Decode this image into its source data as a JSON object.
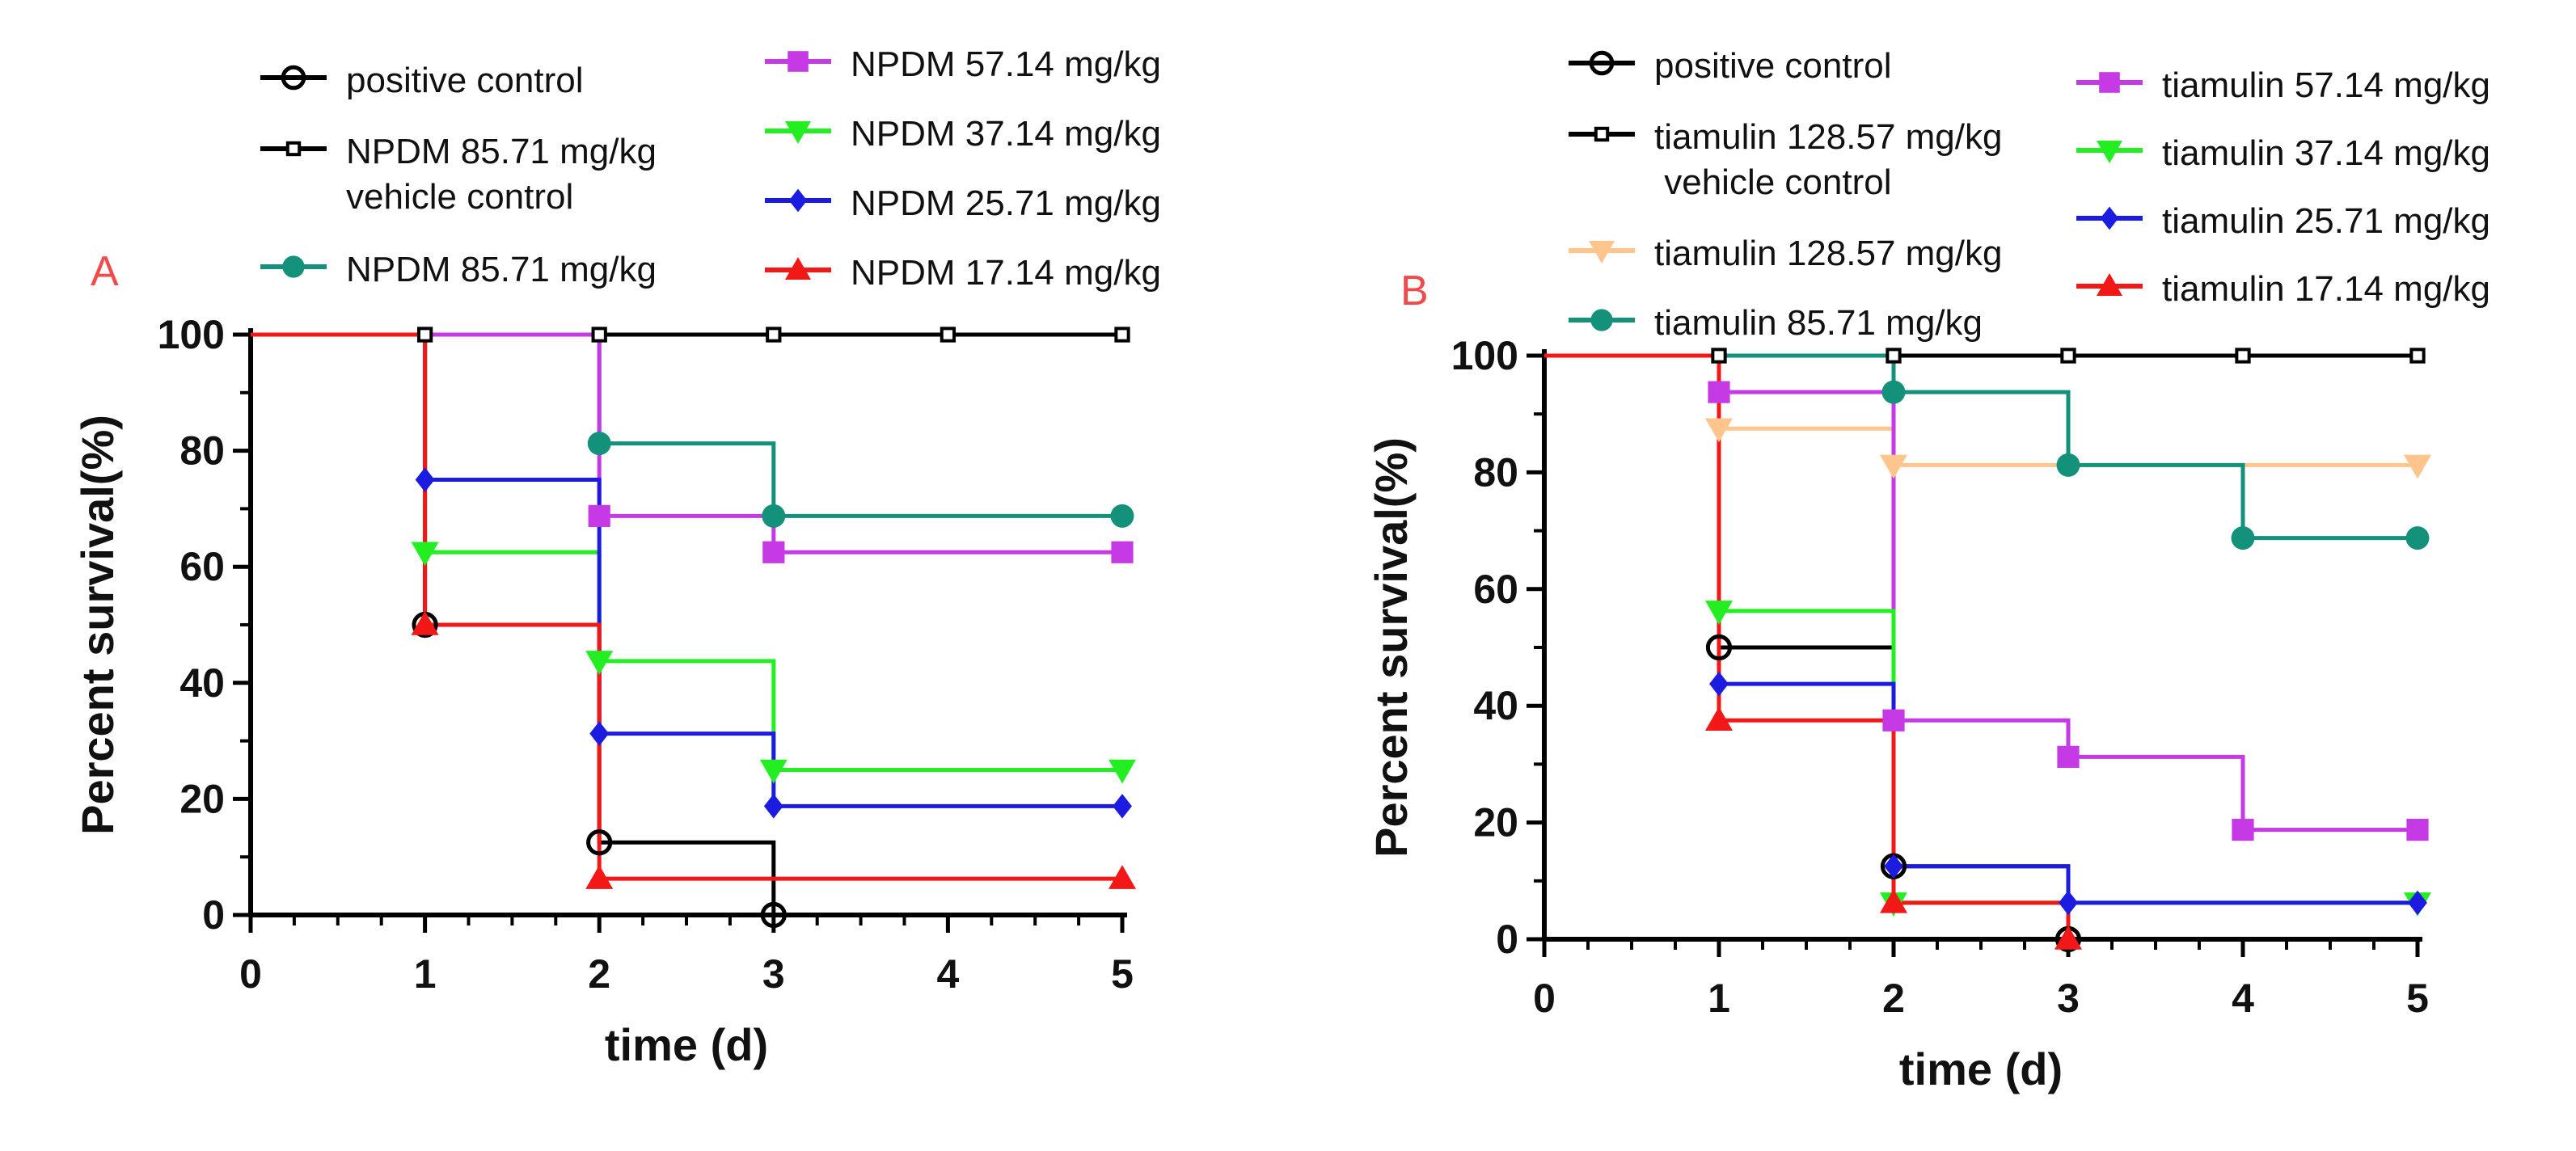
{
  "chart_data": [
    {
      "type": "line",
      "step": true,
      "panel_label": "A",
      "xlabel": "time (d)",
      "ylabel": "Percent survival(%)",
      "xlim": [
        0,
        5
      ],
      "ylim": [
        0,
        100
      ],
      "xticks": [
        "0",
        "1",
        "2",
        "3",
        "4",
        "5"
      ],
      "yticks": [
        "0",
        "20",
        "40",
        "60",
        "80",
        "100"
      ],
      "legend_position": "top",
      "series": [
        {
          "name": "positive control",
          "color": "#000000",
          "marker": "circle-open",
          "x": [
            0,
            1,
            2,
            3
          ],
          "y": [
            100,
            50,
            12.5,
            0
          ],
          "marker_x": [
            1,
            2,
            3
          ]
        },
        {
          "name": "NPDM 85.71 mg/kg\nvehicle control",
          "color": "#000000",
          "marker": "square-small",
          "x": [
            0,
            5
          ],
          "y": [
            100,
            100
          ],
          "marker_x": [
            1,
            2,
            3,
            4,
            5
          ]
        },
        {
          "name": "NPDM 85.71 mg/kg",
          "color": "#13917a",
          "marker": "circle",
          "x": [
            0,
            2,
            3,
            5
          ],
          "y": [
            100,
            81.25,
            68.75,
            68.75
          ],
          "marker_x": [
            2,
            3,
            5
          ]
        },
        {
          "name": "NPDM 57.14 mg/kg",
          "color": "#c63ae6",
          "marker": "square",
          "x": [
            0,
            2,
            3,
            5
          ],
          "y": [
            100,
            68.75,
            62.5,
            62.5
          ],
          "marker_x": [
            2,
            3,
            5
          ]
        },
        {
          "name": "NPDM 37.14 mg/kg",
          "color": "#22ee22",
          "marker": "triangle-down",
          "x": [
            0,
            1,
            2,
            3,
            5
          ],
          "y": [
            100,
            62.5,
            43.75,
            25,
            25
          ],
          "marker_x": [
            1,
            2,
            3,
            5
          ]
        },
        {
          "name": "NPDM 25.71 mg/kg",
          "color": "#1c1ce0",
          "marker": "diamond",
          "x": [
            0,
            1,
            2,
            3,
            5
          ],
          "y": [
            100,
            75,
            31.25,
            18.75,
            18.75
          ],
          "marker_x": [
            1,
            2,
            3,
            5
          ]
        },
        {
          "name": "NPDM 17.14 mg/kg",
          "color": "#f21818",
          "marker": "triangle-up",
          "x": [
            0,
            1,
            2,
            5
          ],
          "y": [
            100,
            50,
            6.25,
            6.25
          ],
          "marker_x": [
            1,
            2,
            5
          ]
        }
      ]
    },
    {
      "type": "line",
      "step": true,
      "panel_label": "B",
      "xlabel": "time (d)",
      "ylabel": "Percent survival(%)",
      "xlim": [
        0,
        5
      ],
      "ylim": [
        0,
        100
      ],
      "xticks": [
        "0",
        "1",
        "2",
        "3",
        "4",
        "5"
      ],
      "yticks": [
        "0",
        "20",
        "40",
        "60",
        "80",
        "100"
      ],
      "legend_position": "top",
      "series": [
        {
          "name": "positive control",
          "color": "#000000",
          "marker": "circle-open",
          "x": [
            0,
            1,
            2,
            3
          ],
          "y": [
            100,
            50,
            12.5,
            0
          ],
          "marker_x": [
            1,
            2,
            3
          ]
        },
        {
          "name": "tiamulin 128.57 mg/kg\n vehicle control",
          "color": "#000000",
          "marker": "square-small",
          "x": [
            0,
            5
          ],
          "y": [
            100,
            100
          ],
          "marker_x": [
            1,
            2,
            3,
            4,
            5
          ]
        },
        {
          "name": "tiamulin 128.57 mg/kg",
          "color": "#ffc58c",
          "marker": "triangle-down",
          "x": [
            0,
            1,
            2,
            5
          ],
          "y": [
            100,
            87.5,
            81.25,
            81.25
          ],
          "marker_x": [
            1,
            2,
            5
          ]
        },
        {
          "name": "tiamulin 85.71 mg/kg",
          "color": "#13917a",
          "marker": "circle",
          "x": [
            0,
            2,
            3,
            4,
            5
          ],
          "y": [
            100,
            93.75,
            81.25,
            68.75,
            68.75
          ],
          "marker_x": [
            2,
            3,
            4,
            5
          ]
        },
        {
          "name": "tiamulin 57.14 mg/kg",
          "color": "#c63ae6",
          "marker": "square",
          "x": [
            0,
            1,
            2,
            3,
            4,
            5
          ],
          "y": [
            100,
            93.75,
            37.5,
            31.25,
            18.75,
            18.75
          ],
          "marker_x": [
            1,
            2,
            3,
            4,
            5
          ]
        },
        {
          "name": "tiamulin 37.14 mg/kg",
          "color": "#22ee22",
          "marker": "triangle-down",
          "x": [
            0,
            1,
            2,
            5
          ],
          "y": [
            100,
            56.25,
            6.25,
            6.25
          ],
          "marker_x": [
            1,
            2,
            5
          ]
        },
        {
          "name": "tiamulin 25.71 mg/kg",
          "color": "#1c1ce0",
          "marker": "diamond",
          "x": [
            0,
            1,
            2,
            3,
            5
          ],
          "y": [
            100,
            43.75,
            12.5,
            6.25,
            6.25
          ],
          "marker_x": [
            1,
            2,
            3,
            5
          ]
        },
        {
          "name": "tiamulin 17.14 mg/kg",
          "color": "#f21818",
          "marker": "triangle-up",
          "x": [
            0,
            1,
            2,
            3
          ],
          "y": [
            100,
            37.5,
            6.25,
            0
          ],
          "marker_x": [
            1,
            2,
            3
          ]
        }
      ]
    }
  ]
}
